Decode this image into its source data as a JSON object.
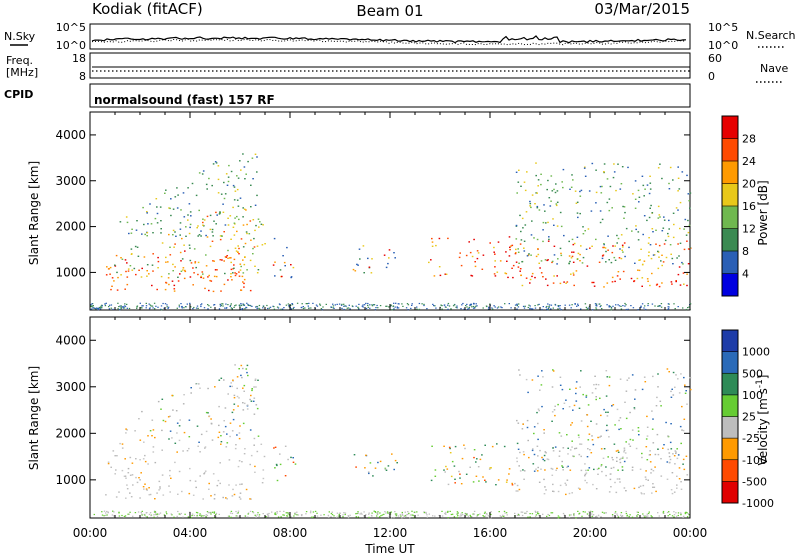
{
  "header": {
    "station": "Kodiak (fitACF)",
    "beam": "Beam 01",
    "date": "03/Mar/2015"
  },
  "strips": {
    "nsky_label": "N.Sky",
    "nsearch_label": "N.Search",
    "nsky_ticks": [
      "10^5",
      "10^0"
    ],
    "nsearch_ticks": [
      "10^5",
      "10^0"
    ],
    "freq_label_1": "Freq.",
    "freq_label_2": "[MHz]",
    "freq_ticks": [
      "18",
      "8"
    ],
    "nave_label": "Nave",
    "nave_ticks": [
      "60",
      "0"
    ],
    "cpid_label": "CPID",
    "cpid_value": "normalsound (fast) 157 RF"
  },
  "chart_data": [
    {
      "type": "heatmap",
      "panel": "power",
      "ylabel": "Slant Range [km]",
      "yticks": [
        1000,
        2000,
        3000,
        4000
      ],
      "ylim": [
        180,
        4500
      ],
      "xlim": [
        0,
        24
      ],
      "xticks": [
        "00:00",
        "04:00",
        "08:00",
        "12:00",
        "16:00",
        "20:00",
        "00:00"
      ],
      "colorbar": {
        "label": "Power [dB]",
        "ticks": [
          "28",
          "24",
          "20",
          "16",
          "12",
          "8",
          "4"
        ],
        "colors": [
          "#0000e0",
          "#2a5fb5",
          "#3a8a52",
          "#6fb84f",
          "#e8c81a",
          "#ff9a00",
          "#ff4a00",
          "#e60000"
        ]
      },
      "scatter_regions": [
        {
          "t0": 0.6,
          "t1": 6.4,
          "r0": 600,
          "r1": 1500,
          "color": "red"
        },
        {
          "t0": 0.6,
          "t1": 7.0,
          "r0": 900,
          "r1": 2400,
          "color": "orange-green"
        },
        {
          "t0": 1.0,
          "t1": 6.8,
          "r0": 1800,
          "r1": 3600,
          "color": "green-blue"
        },
        {
          "t0": 7.3,
          "t1": 8.2,
          "r0": 900,
          "r1": 1800,
          "color": "mixed"
        },
        {
          "t0": 10.5,
          "t1": 12.3,
          "r0": 1000,
          "r1": 1600,
          "color": "mixed"
        },
        {
          "t0": 13.5,
          "t1": 17.0,
          "r0": 900,
          "r1": 1800,
          "color": "red-orange"
        },
        {
          "t0": 17.0,
          "t1": 24.0,
          "r0": 700,
          "r1": 1700,
          "color": "red-orange"
        },
        {
          "t0": 17.0,
          "t1": 24.0,
          "r0": 1200,
          "r1": 3400,
          "color": "green-blue"
        }
      ]
    },
    {
      "type": "heatmap",
      "panel": "velocity",
      "ylabel": "Slant Range [km]",
      "yticks": [
        1000,
        2000,
        3000,
        4000
      ],
      "ylim": [
        180,
        4500
      ],
      "xlim": [
        0,
        24
      ],
      "xlabel": "Time UT",
      "xticks": [
        "00:00",
        "04:00",
        "08:00",
        "12:00",
        "16:00",
        "20:00",
        "00:00"
      ],
      "colorbar": {
        "label": "Velocity [m s^-1]",
        "ticks": [
          "1000",
          "500",
          "100",
          "25",
          "-25",
          "-100",
          "-500",
          "-1000"
        ],
        "colors": [
          "#e00000",
          "#ff4a00",
          "#ff9a00",
          "#bdbdbd",
          "#66cc33",
          "#2e8b57",
          "#2a6ab8",
          "#1e3ca8"
        ]
      },
      "scatter_regions": [
        {
          "t0": 0.6,
          "t1": 7.0,
          "r0": 600,
          "r1": 1800,
          "color": "grey"
        },
        {
          "t0": 1.0,
          "t1": 6.8,
          "r0": 1800,
          "r1": 3500,
          "color": "grey-mixed"
        },
        {
          "t0": 7.3,
          "t1": 8.2,
          "r0": 900,
          "r1": 1800,
          "color": "green-orange"
        },
        {
          "t0": 10.5,
          "t1": 12.3,
          "r0": 1000,
          "r1": 1600,
          "color": "green-orange"
        },
        {
          "t0": 13.5,
          "t1": 17.0,
          "r0": 900,
          "r1": 1800,
          "color": "orange-green"
        },
        {
          "t0": 17.0,
          "t1": 24.0,
          "r0": 700,
          "r1": 1700,
          "color": "grey"
        },
        {
          "t0": 17.0,
          "t1": 24.0,
          "r0": 1200,
          "r1": 3400,
          "color": "grey-mixed"
        }
      ]
    }
  ]
}
